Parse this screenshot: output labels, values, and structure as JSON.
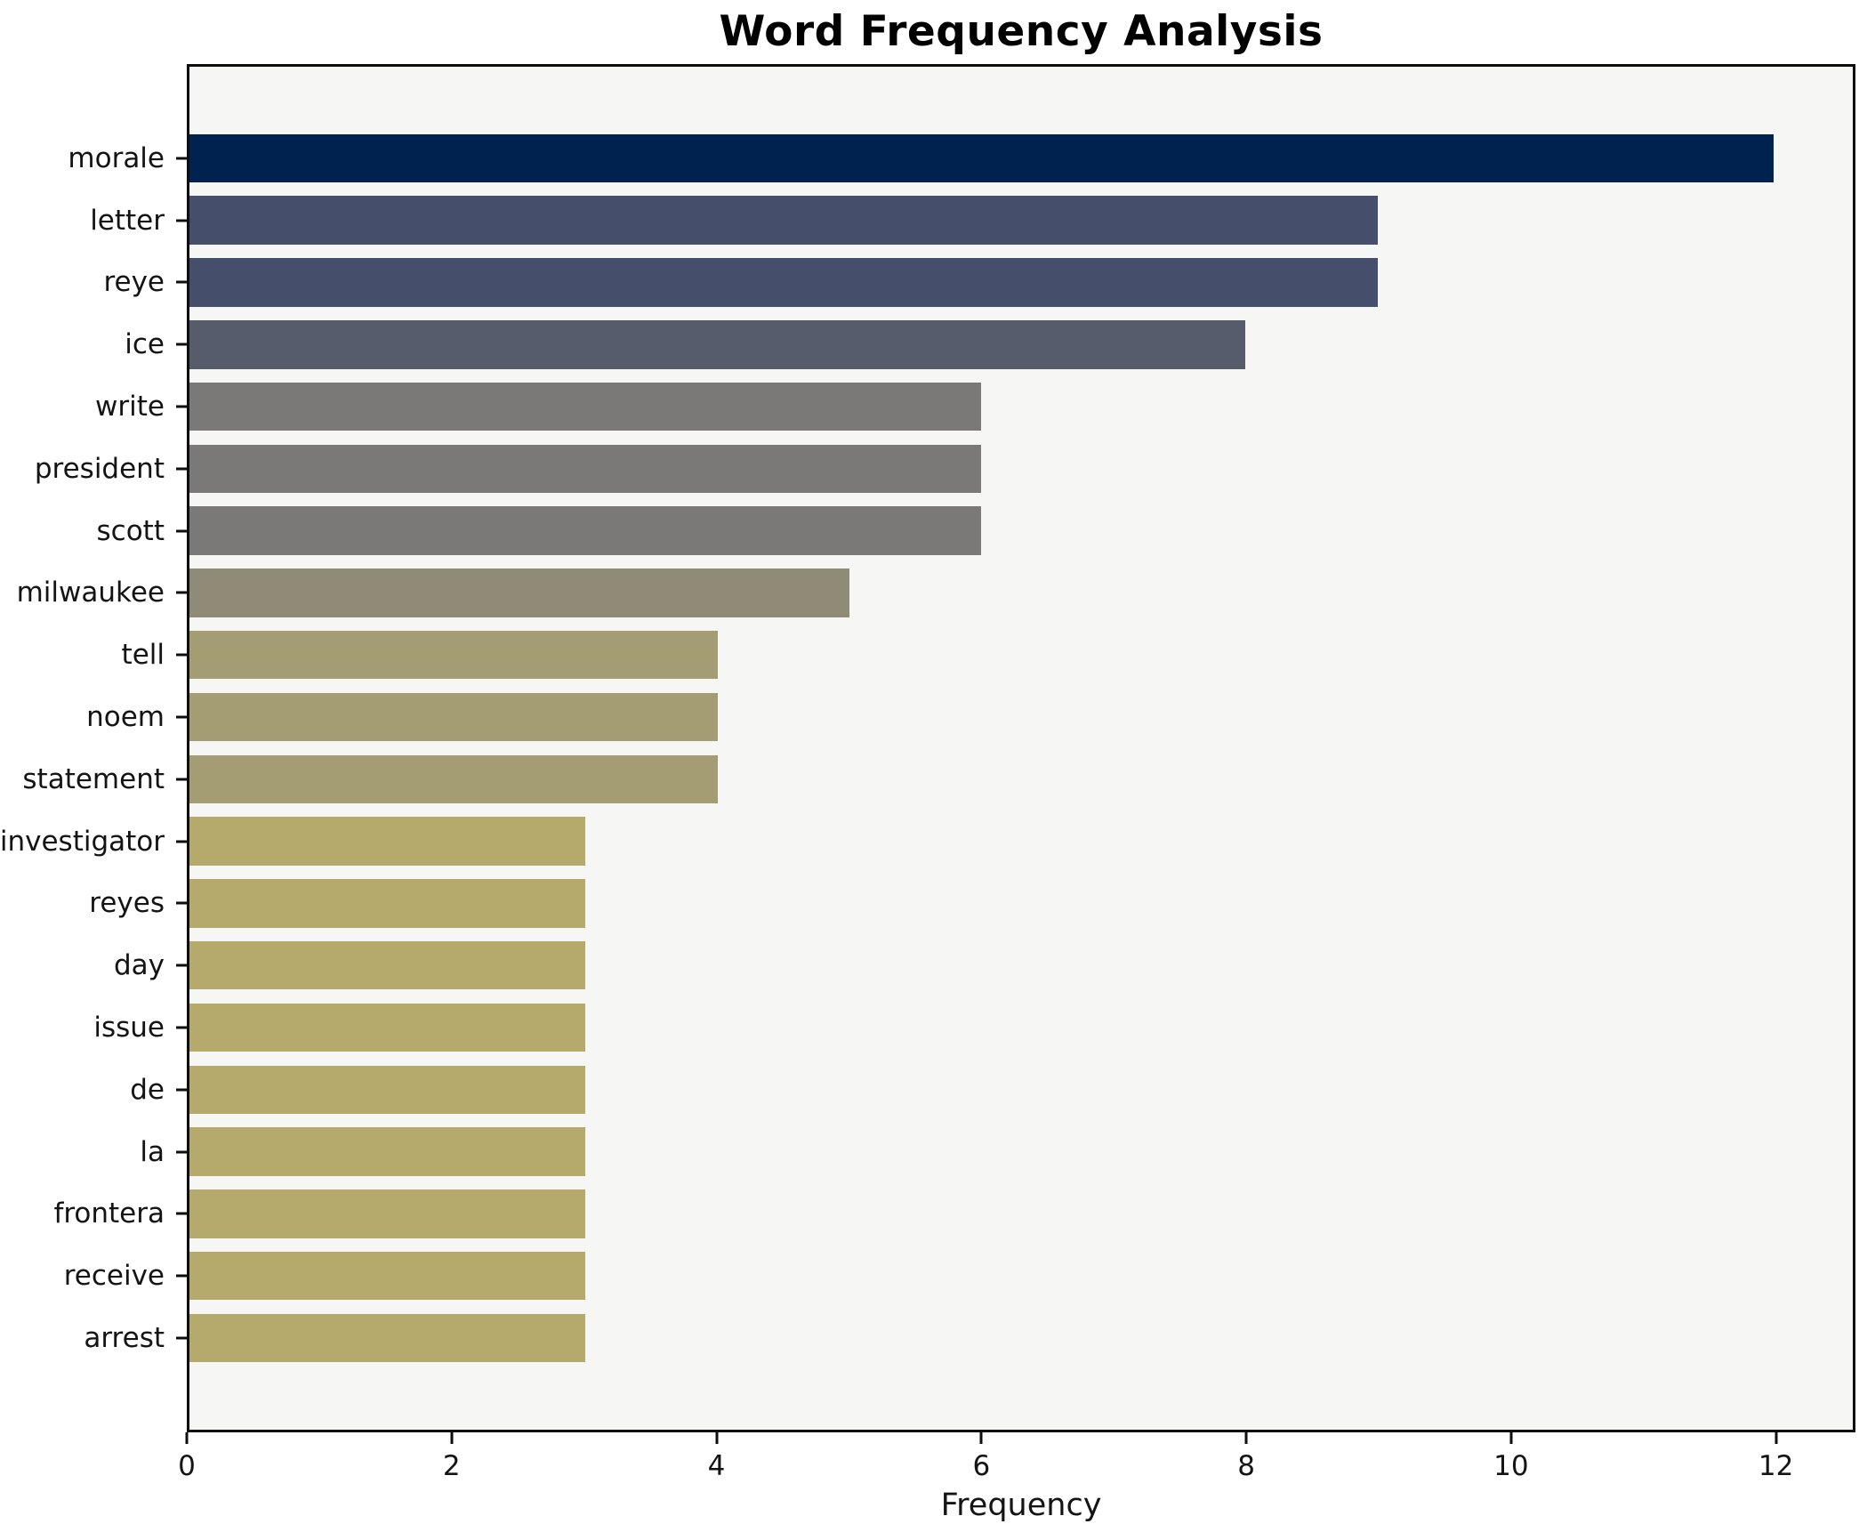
{
  "title": "Word Frequency Analysis",
  "chart_data": {
    "type": "bar",
    "orientation": "horizontal",
    "title": "Word Frequency Analysis",
    "xlabel": "Frequency",
    "ylabel": "",
    "categories": [
      "morale",
      "letter",
      "reye",
      "ice",
      "write",
      "president",
      "scott",
      "milwaukee",
      "tell",
      "noem",
      "statement",
      "investigator",
      "reyes",
      "day",
      "issue",
      "de",
      "la",
      "frontera",
      "receive",
      "arrest"
    ],
    "values": [
      12,
      9,
      9,
      8,
      6,
      6,
      6,
      5,
      4,
      4,
      4,
      3,
      3,
      3,
      3,
      3,
      3,
      3,
      3,
      3
    ],
    "bar_colors": [
      "#00224e",
      "#454f6b",
      "#454f6b",
      "#575c6c",
      "#7a7977",
      "#7a7977",
      "#7a7977",
      "#908b76",
      "#a49d73",
      "#a49d73",
      "#a49d73",
      "#b5aa6b",
      "#b5aa6b",
      "#b5aa6b",
      "#b5aa6b",
      "#b5aa6b",
      "#b5aa6b",
      "#b5aa6b",
      "#b5aa6b",
      "#b5aa6b"
    ],
    "xlim": [
      0,
      12.6
    ],
    "xticks": [
      0,
      2,
      4,
      6,
      8,
      10,
      12
    ],
    "grid": false,
    "legend": "none",
    "plot_background": "#f6f6f5",
    "figure_background": "#ffffff",
    "axis_color": "#0e0e0e"
  }
}
